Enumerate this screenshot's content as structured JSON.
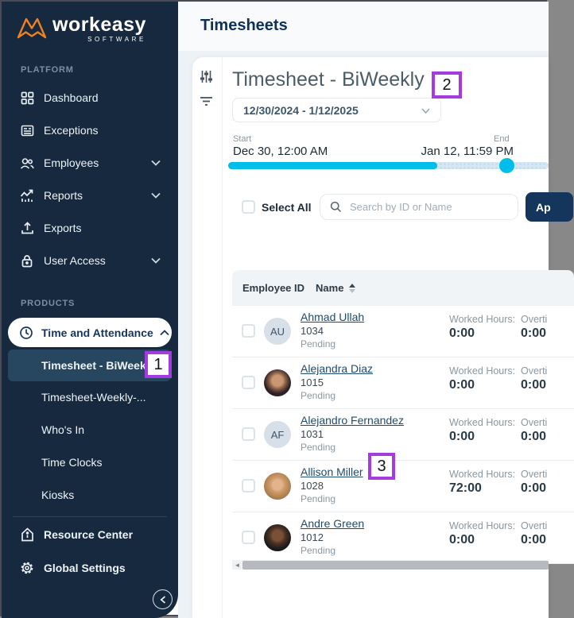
{
  "app": {
    "logo_text": "workeasy",
    "logo_sub": "SOFTWARE"
  },
  "sidebar": {
    "platform_label": "PLATFORM",
    "products_label": "PRODUCTS",
    "platform_items": [
      {
        "label": "Dashboard",
        "icon": "dashboard-icon",
        "has_chevron": false
      },
      {
        "label": "Exceptions",
        "icon": "exceptions-icon",
        "has_chevron": false
      },
      {
        "label": "Employees",
        "icon": "employees-icon",
        "has_chevron": true
      },
      {
        "label": "Reports",
        "icon": "reports-icon",
        "has_chevron": true
      },
      {
        "label": "Exports",
        "icon": "exports-icon",
        "has_chevron": false
      },
      {
        "label": "User Access",
        "icon": "lock-icon",
        "has_chevron": true
      }
    ],
    "products_group": {
      "label": "Time and Attendance",
      "expanded": true
    },
    "product_items": [
      {
        "label": "Timesheet - BiWeekly",
        "selected": true
      },
      {
        "label": "Timesheet-Weekly-...",
        "selected": false
      },
      {
        "label": "Who's In",
        "selected": false
      },
      {
        "label": "Time Clocks",
        "selected": false
      },
      {
        "label": "Kiosks",
        "selected": false
      }
    ],
    "footer_items": [
      {
        "label": "Resource Center",
        "icon": "resource-center-icon"
      },
      {
        "label": "Global Settings",
        "icon": "gear-icon"
      }
    ]
  },
  "header": {
    "title": "Timesheets"
  },
  "panel": {
    "title": "Timesheet - BiWeekly",
    "date_range_value": "12/30/2024 - 1/12/2025",
    "range": {
      "start_label": "Start",
      "start_value": "Dec 30, 12:00 AM",
      "end_label": "End",
      "end_value": "Jan 12, 11:59 PM",
      "fill_percent": 65,
      "handle_percent": 87
    },
    "select_all_label": "Select All",
    "search_placeholder": "Search by ID or Name",
    "approve_button_visible_text": "Ap",
    "table": {
      "col_employee_id": "Employee ID",
      "col_name": "Name",
      "worked_label": "Worked Hours:",
      "overtime_label_visible": "Overti",
      "rows": [
        {
          "name": "Ahmad Ullah",
          "id": "1034",
          "status": "Pending",
          "avatar_type": "initials",
          "initials": "AU",
          "photo_style": "",
          "worked": "0:00",
          "overtime": "0:00"
        },
        {
          "name": "Alejandra Diaz",
          "id": "1015",
          "status": "Pending",
          "avatar_type": "photo",
          "initials": "",
          "photo_style": "brunette",
          "worked": "0:00",
          "overtime": "0:00"
        },
        {
          "name": "Alejandro Fernandez",
          "id": "1031",
          "status": "Pending",
          "avatar_type": "initials",
          "initials": "AF",
          "photo_style": "",
          "worked": "0:00",
          "overtime": "0:00"
        },
        {
          "name": "Allison Miller",
          "id": "1028",
          "status": "Pending",
          "avatar_type": "photo",
          "initials": "",
          "photo_style": "blonde",
          "worked": "72:00",
          "overtime": "0:00"
        },
        {
          "name": "Andre Green",
          "id": "1012",
          "status": "Pending",
          "avatar_type": "photo",
          "initials": "",
          "photo_style": "darkman",
          "worked": "0:00",
          "overtime": "0:00"
        }
      ]
    }
  },
  "callouts": [
    {
      "number": "1"
    },
    {
      "number": "2"
    },
    {
      "number": "3"
    }
  ],
  "colors": {
    "sidebar_bg": "#16293f",
    "selected_item_bg": "#27465f",
    "accent_cyan": "#00bee9",
    "navy": "#14365c",
    "callout_purple": "#a43be0",
    "content_bg": "#edf2f7"
  }
}
